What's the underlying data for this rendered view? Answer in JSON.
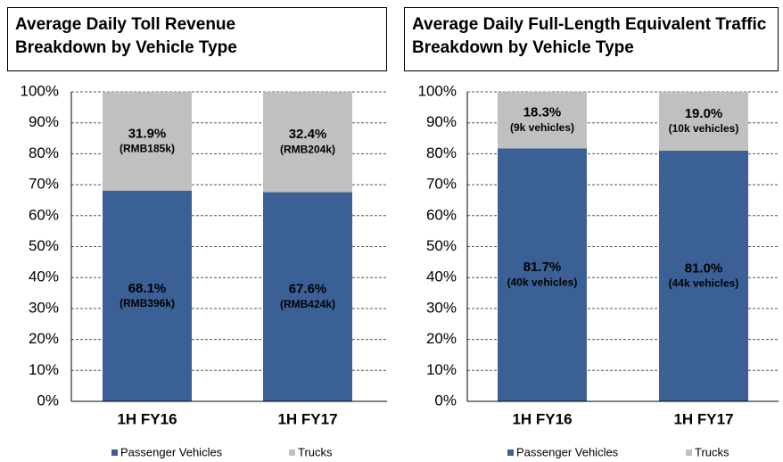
{
  "chart_data": [
    {
      "type": "stacked_bar",
      "title": "Average Daily Toll Revenue Breakdown by Vehicle Type",
      "categories": [
        "1H FY16",
        "1H FY17"
      ],
      "series": [
        {
          "name": "Passenger Vehicles",
          "color": "#3b6096",
          "values": [
            68.1,
            67.6
          ],
          "value_labels": [
            "68.1%",
            "67.6%"
          ],
          "value_details": [
            "(RMB396k)",
            "(RMB424k)"
          ]
        },
        {
          "name": "Trucks",
          "color": "#c0c0c0",
          "values": [
            31.9,
            32.4
          ],
          "value_labels": [
            "31.9%",
            "32.4%"
          ],
          "value_details": [
            "(RMB185k)",
            "(RMB204k)"
          ]
        }
      ],
      "ylim": [
        0,
        100
      ],
      "yticks": [
        {
          "value": 0,
          "label": "0%"
        },
        {
          "value": 10,
          "label": "10%"
        },
        {
          "value": 20,
          "label": "20%"
        },
        {
          "value": 30,
          "label": "30%"
        },
        {
          "value": 40,
          "label": "40%"
        },
        {
          "value": 50,
          "label": "50%"
        },
        {
          "value": 60,
          "label": "60%"
        },
        {
          "value": 70,
          "label": "70%"
        },
        {
          "value": 80,
          "label": "80%"
        },
        {
          "value": 90,
          "label": "90%"
        },
        {
          "value": 100,
          "label": "100%"
        }
      ],
      "grid": true,
      "legend": "bottom"
    },
    {
      "type": "stacked_bar",
      "title": "Average Daily Full-Length Equivalent Traffic Breakdown by Vehicle Type",
      "categories": [
        "1H FY16",
        "1H FY17"
      ],
      "series": [
        {
          "name": "Passenger Vehicles",
          "color": "#3b6096",
          "values": [
            81.7,
            81.0
          ],
          "value_labels": [
            "81.7%",
            "81.0%"
          ],
          "value_details": [
            "(40k vehicles)",
            "(44k vehicles)"
          ]
        },
        {
          "name": "Trucks",
          "color": "#c0c0c0",
          "values": [
            18.3,
            19.0
          ],
          "value_labels": [
            "18.3%",
            "19.0%"
          ],
          "value_details": [
            "(9k vehicles)",
            "(10k vehicles)"
          ]
        }
      ],
      "ylim": [
        0,
        100
      ],
      "yticks": [
        {
          "value": 0,
          "label": "0%"
        },
        {
          "value": 10,
          "label": "10%"
        },
        {
          "value": 20,
          "label": "20%"
        },
        {
          "value": 30,
          "label": "30%"
        },
        {
          "value": 40,
          "label": "40%"
        },
        {
          "value": 50,
          "label": "50%"
        },
        {
          "value": 60,
          "label": "60%"
        },
        {
          "value": 70,
          "label": "70%"
        },
        {
          "value": 80,
          "label": "80%"
        },
        {
          "value": 90,
          "label": "90%"
        },
        {
          "value": 100,
          "label": "100%"
        }
      ],
      "grid": true,
      "legend": "bottom"
    }
  ]
}
